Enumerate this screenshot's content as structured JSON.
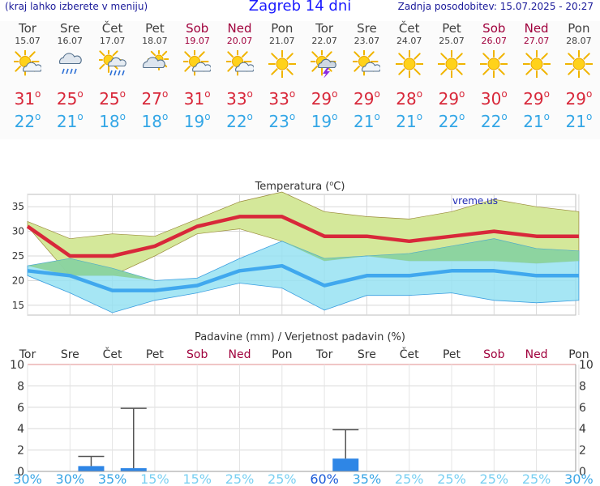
{
  "header": {
    "subtitle": "(kraj lahko izberete v meniju)",
    "title": "Zagreb 14 dni",
    "updated": "Zadnja posodobitev: 15.07.2025 - 20:27"
  },
  "colors": {
    "max_line": "#d8283a",
    "min_line": "#40a8ee",
    "max_band": "#d4e89a",
    "min_band": "#96e2f2",
    "overlap": "#88cf8e",
    "weekend_text": "#a0003c",
    "precip_bar": "#2e86e6",
    "prob_high": "#1a5ad8",
    "prob_low": "#7ad0f2"
  },
  "days": [
    {
      "name": "Tor",
      "date": "15.07",
      "icon": "partly-cloudy-icon",
      "max": "31",
      "min": "22",
      "weekend": false
    },
    {
      "name": "Sre",
      "date": "16.07",
      "icon": "rain-cloud-icon",
      "max": "25",
      "min": "21",
      "weekend": false
    },
    {
      "name": "Čet",
      "date": "17.07",
      "icon": "sun-cloud-rain-icon",
      "max": "25",
      "min": "18",
      "weekend": false
    },
    {
      "name": "Pet",
      "date": "18.07",
      "icon": "cloudy-sun-icon",
      "max": "27",
      "min": "18",
      "weekend": false
    },
    {
      "name": "Sob",
      "date": "19.07",
      "icon": "partly-cloudy-icon",
      "max": "31",
      "min": "19",
      "weekend": true
    },
    {
      "name": "Ned",
      "date": "20.07",
      "icon": "partly-cloudy-icon",
      "max": "33",
      "min": "22",
      "weekend": true
    },
    {
      "name": "Pon",
      "date": "21.07",
      "icon": "sun-icon",
      "max": "33",
      "min": "23",
      "weekend": false
    },
    {
      "name": "Tor",
      "date": "22.07",
      "icon": "thunderstorm-icon",
      "max": "29",
      "min": "19",
      "weekend": false
    },
    {
      "name": "Sre",
      "date": "23.07",
      "icon": "partly-cloudy-icon",
      "max": "29",
      "min": "21",
      "weekend": false
    },
    {
      "name": "Čet",
      "date": "24.07",
      "icon": "sun-icon",
      "max": "28",
      "min": "21",
      "weekend": false
    },
    {
      "name": "Pet",
      "date": "25.07",
      "icon": "sun-icon",
      "max": "29",
      "min": "22",
      "weekend": false
    },
    {
      "name": "Sob",
      "date": "26.07",
      "icon": "sun-icon",
      "max": "30",
      "min": "22",
      "weekend": true
    },
    {
      "name": "Ned",
      "date": "27.07",
      "icon": "sun-icon",
      "max": "29",
      "min": "21",
      "weekend": true
    },
    {
      "name": "Pon",
      "date": "28.07",
      "icon": "sun-icon",
      "max": "29",
      "min": "21",
      "weekend": false
    }
  ],
  "temperature_chart": {
    "title": "Temperatura",
    "unit": "°C",
    "watermark": "vreme.us"
  },
  "precip_chart": {
    "title": "Padavine (mm) / Verjetnost padavin (%)"
  },
  "chart_data": [
    {
      "type": "line",
      "title": "Temperatura (°C)",
      "categories": [
        "15.07",
        "16.07",
        "17.07",
        "18.07",
        "19.07",
        "20.07",
        "21.07",
        "22.07",
        "23.07",
        "24.07",
        "25.07",
        "26.07",
        "27.07",
        "28.07"
      ],
      "ylim": [
        13,
        37.5
      ],
      "yticks": [
        15,
        20,
        25,
        30,
        35
      ],
      "grid": true,
      "series": [
        {
          "values": [
            31,
            25,
            25,
            27,
            31,
            33,
            33,
            29,
            29,
            28,
            29,
            30,
            29,
            29
          ]
        },
        {
          "values": [
            22,
            21,
            18,
            18,
            19,
            22,
            23,
            19,
            21,
            21,
            22,
            22,
            21,
            21
          ]
        }
      ],
      "bands": [
        {
          "upper": [
            32,
            28.5,
            29.5,
            29,
            32.5,
            36,
            38,
            34,
            33,
            32.5,
            34,
            36.5,
            35,
            34
          ],
          "lower": [
            31,
            21,
            21,
            25,
            29.5,
            30.5,
            28,
            24,
            25,
            24,
            24,
            24,
            23.5,
            24
          ]
        },
        {
          "upper": [
            23,
            24.5,
            22.5,
            20,
            20.5,
            24.5,
            28,
            24.5,
            25,
            25.5,
            27,
            28.5,
            26.5,
            26
          ],
          "lower": [
            21,
            17.5,
            13.5,
            16,
            17.5,
            19.5,
            18.5,
            14,
            17,
            17,
            17.5,
            16,
            15.5,
            16
          ]
        }
      ]
    },
    {
      "type": "bar",
      "title": "Padavine (mm) / Verjetnost padavin (%)",
      "categories": [
        "Tor",
        "Sre",
        "Čet",
        "Pet",
        "Sob",
        "Ned",
        "Pon",
        "Tor",
        "Sre",
        "Čet",
        "Pet",
        "Sob",
        "Ned",
        "Pon"
      ],
      "ylim": [
        0,
        10
      ],
      "yticks": [
        0,
        2,
        4,
        6,
        8,
        10
      ],
      "grid": true,
      "values": [
        0,
        0.5,
        0.3,
        0,
        0,
        0,
        0,
        1.2,
        0,
        0,
        0,
        0,
        0,
        0
      ],
      "error_high": [
        null,
        1.4,
        5.9,
        null,
        null,
        null,
        null,
        3.9,
        null,
        null,
        null,
        null,
        null,
        null
      ],
      "probability": [
        "30%",
        "30%",
        "35%",
        "15%",
        "15%",
        "25%",
        "25%",
        "60%",
        "35%",
        "25%",
        "25%",
        "25%",
        "25%",
        "30%"
      ]
    }
  ]
}
